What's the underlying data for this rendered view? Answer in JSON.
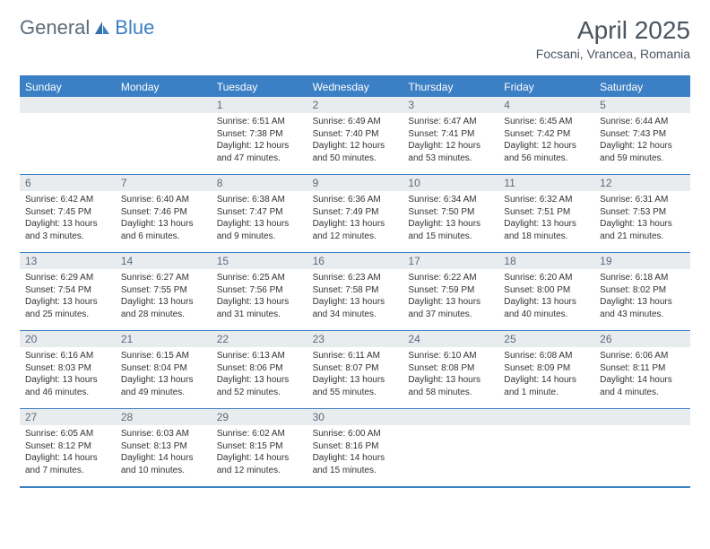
{
  "logo": {
    "general": "General",
    "blue": "Blue"
  },
  "title": "April 2025",
  "location": "Focsani, Vrancea, Romania",
  "colors": {
    "accent": "#3b7fc4",
    "header_text": "#4a5560",
    "cell_num_bg": "#e9ecef",
    "cell_num_text": "#5a6b7a",
    "body_text": "#333333",
    "background": "#ffffff"
  },
  "day_names": [
    "Sunday",
    "Monday",
    "Tuesday",
    "Wednesday",
    "Thursday",
    "Friday",
    "Saturday"
  ],
  "weeks": [
    [
      {
        "n": "",
        "sr": "",
        "ss": "",
        "dl1": "",
        "dl2": ""
      },
      {
        "n": "",
        "sr": "",
        "ss": "",
        "dl1": "",
        "dl2": ""
      },
      {
        "n": "1",
        "sr": "Sunrise: 6:51 AM",
        "ss": "Sunset: 7:38 PM",
        "dl1": "Daylight: 12 hours",
        "dl2": "and 47 minutes."
      },
      {
        "n": "2",
        "sr": "Sunrise: 6:49 AM",
        "ss": "Sunset: 7:40 PM",
        "dl1": "Daylight: 12 hours",
        "dl2": "and 50 minutes."
      },
      {
        "n": "3",
        "sr": "Sunrise: 6:47 AM",
        "ss": "Sunset: 7:41 PM",
        "dl1": "Daylight: 12 hours",
        "dl2": "and 53 minutes."
      },
      {
        "n": "4",
        "sr": "Sunrise: 6:45 AM",
        "ss": "Sunset: 7:42 PM",
        "dl1": "Daylight: 12 hours",
        "dl2": "and 56 minutes."
      },
      {
        "n": "5",
        "sr": "Sunrise: 6:44 AM",
        "ss": "Sunset: 7:43 PM",
        "dl1": "Daylight: 12 hours",
        "dl2": "and 59 minutes."
      }
    ],
    [
      {
        "n": "6",
        "sr": "Sunrise: 6:42 AM",
        "ss": "Sunset: 7:45 PM",
        "dl1": "Daylight: 13 hours",
        "dl2": "and 3 minutes."
      },
      {
        "n": "7",
        "sr": "Sunrise: 6:40 AM",
        "ss": "Sunset: 7:46 PM",
        "dl1": "Daylight: 13 hours",
        "dl2": "and 6 minutes."
      },
      {
        "n": "8",
        "sr": "Sunrise: 6:38 AM",
        "ss": "Sunset: 7:47 PM",
        "dl1": "Daylight: 13 hours",
        "dl2": "and 9 minutes."
      },
      {
        "n": "9",
        "sr": "Sunrise: 6:36 AM",
        "ss": "Sunset: 7:49 PM",
        "dl1": "Daylight: 13 hours",
        "dl2": "and 12 minutes."
      },
      {
        "n": "10",
        "sr": "Sunrise: 6:34 AM",
        "ss": "Sunset: 7:50 PM",
        "dl1": "Daylight: 13 hours",
        "dl2": "and 15 minutes."
      },
      {
        "n": "11",
        "sr": "Sunrise: 6:32 AM",
        "ss": "Sunset: 7:51 PM",
        "dl1": "Daylight: 13 hours",
        "dl2": "and 18 minutes."
      },
      {
        "n": "12",
        "sr": "Sunrise: 6:31 AM",
        "ss": "Sunset: 7:53 PM",
        "dl1": "Daylight: 13 hours",
        "dl2": "and 21 minutes."
      }
    ],
    [
      {
        "n": "13",
        "sr": "Sunrise: 6:29 AM",
        "ss": "Sunset: 7:54 PM",
        "dl1": "Daylight: 13 hours",
        "dl2": "and 25 minutes."
      },
      {
        "n": "14",
        "sr": "Sunrise: 6:27 AM",
        "ss": "Sunset: 7:55 PM",
        "dl1": "Daylight: 13 hours",
        "dl2": "and 28 minutes."
      },
      {
        "n": "15",
        "sr": "Sunrise: 6:25 AM",
        "ss": "Sunset: 7:56 PM",
        "dl1": "Daylight: 13 hours",
        "dl2": "and 31 minutes."
      },
      {
        "n": "16",
        "sr": "Sunrise: 6:23 AM",
        "ss": "Sunset: 7:58 PM",
        "dl1": "Daylight: 13 hours",
        "dl2": "and 34 minutes."
      },
      {
        "n": "17",
        "sr": "Sunrise: 6:22 AM",
        "ss": "Sunset: 7:59 PM",
        "dl1": "Daylight: 13 hours",
        "dl2": "and 37 minutes."
      },
      {
        "n": "18",
        "sr": "Sunrise: 6:20 AM",
        "ss": "Sunset: 8:00 PM",
        "dl1": "Daylight: 13 hours",
        "dl2": "and 40 minutes."
      },
      {
        "n": "19",
        "sr": "Sunrise: 6:18 AM",
        "ss": "Sunset: 8:02 PM",
        "dl1": "Daylight: 13 hours",
        "dl2": "and 43 minutes."
      }
    ],
    [
      {
        "n": "20",
        "sr": "Sunrise: 6:16 AM",
        "ss": "Sunset: 8:03 PM",
        "dl1": "Daylight: 13 hours",
        "dl2": "and 46 minutes."
      },
      {
        "n": "21",
        "sr": "Sunrise: 6:15 AM",
        "ss": "Sunset: 8:04 PM",
        "dl1": "Daylight: 13 hours",
        "dl2": "and 49 minutes."
      },
      {
        "n": "22",
        "sr": "Sunrise: 6:13 AM",
        "ss": "Sunset: 8:06 PM",
        "dl1": "Daylight: 13 hours",
        "dl2": "and 52 minutes."
      },
      {
        "n": "23",
        "sr": "Sunrise: 6:11 AM",
        "ss": "Sunset: 8:07 PM",
        "dl1": "Daylight: 13 hours",
        "dl2": "and 55 minutes."
      },
      {
        "n": "24",
        "sr": "Sunrise: 6:10 AM",
        "ss": "Sunset: 8:08 PM",
        "dl1": "Daylight: 13 hours",
        "dl2": "and 58 minutes."
      },
      {
        "n": "25",
        "sr": "Sunrise: 6:08 AM",
        "ss": "Sunset: 8:09 PM",
        "dl1": "Daylight: 14 hours",
        "dl2": "and 1 minute."
      },
      {
        "n": "26",
        "sr": "Sunrise: 6:06 AM",
        "ss": "Sunset: 8:11 PM",
        "dl1": "Daylight: 14 hours",
        "dl2": "and 4 minutes."
      }
    ],
    [
      {
        "n": "27",
        "sr": "Sunrise: 6:05 AM",
        "ss": "Sunset: 8:12 PM",
        "dl1": "Daylight: 14 hours",
        "dl2": "and 7 minutes."
      },
      {
        "n": "28",
        "sr": "Sunrise: 6:03 AM",
        "ss": "Sunset: 8:13 PM",
        "dl1": "Daylight: 14 hours",
        "dl2": "and 10 minutes."
      },
      {
        "n": "29",
        "sr": "Sunrise: 6:02 AM",
        "ss": "Sunset: 8:15 PM",
        "dl1": "Daylight: 14 hours",
        "dl2": "and 12 minutes."
      },
      {
        "n": "30",
        "sr": "Sunrise: 6:00 AM",
        "ss": "Sunset: 8:16 PM",
        "dl1": "Daylight: 14 hours",
        "dl2": "and 15 minutes."
      },
      {
        "n": "",
        "sr": "",
        "ss": "",
        "dl1": "",
        "dl2": ""
      },
      {
        "n": "",
        "sr": "",
        "ss": "",
        "dl1": "",
        "dl2": ""
      },
      {
        "n": "",
        "sr": "",
        "ss": "",
        "dl1": "",
        "dl2": ""
      }
    ]
  ]
}
